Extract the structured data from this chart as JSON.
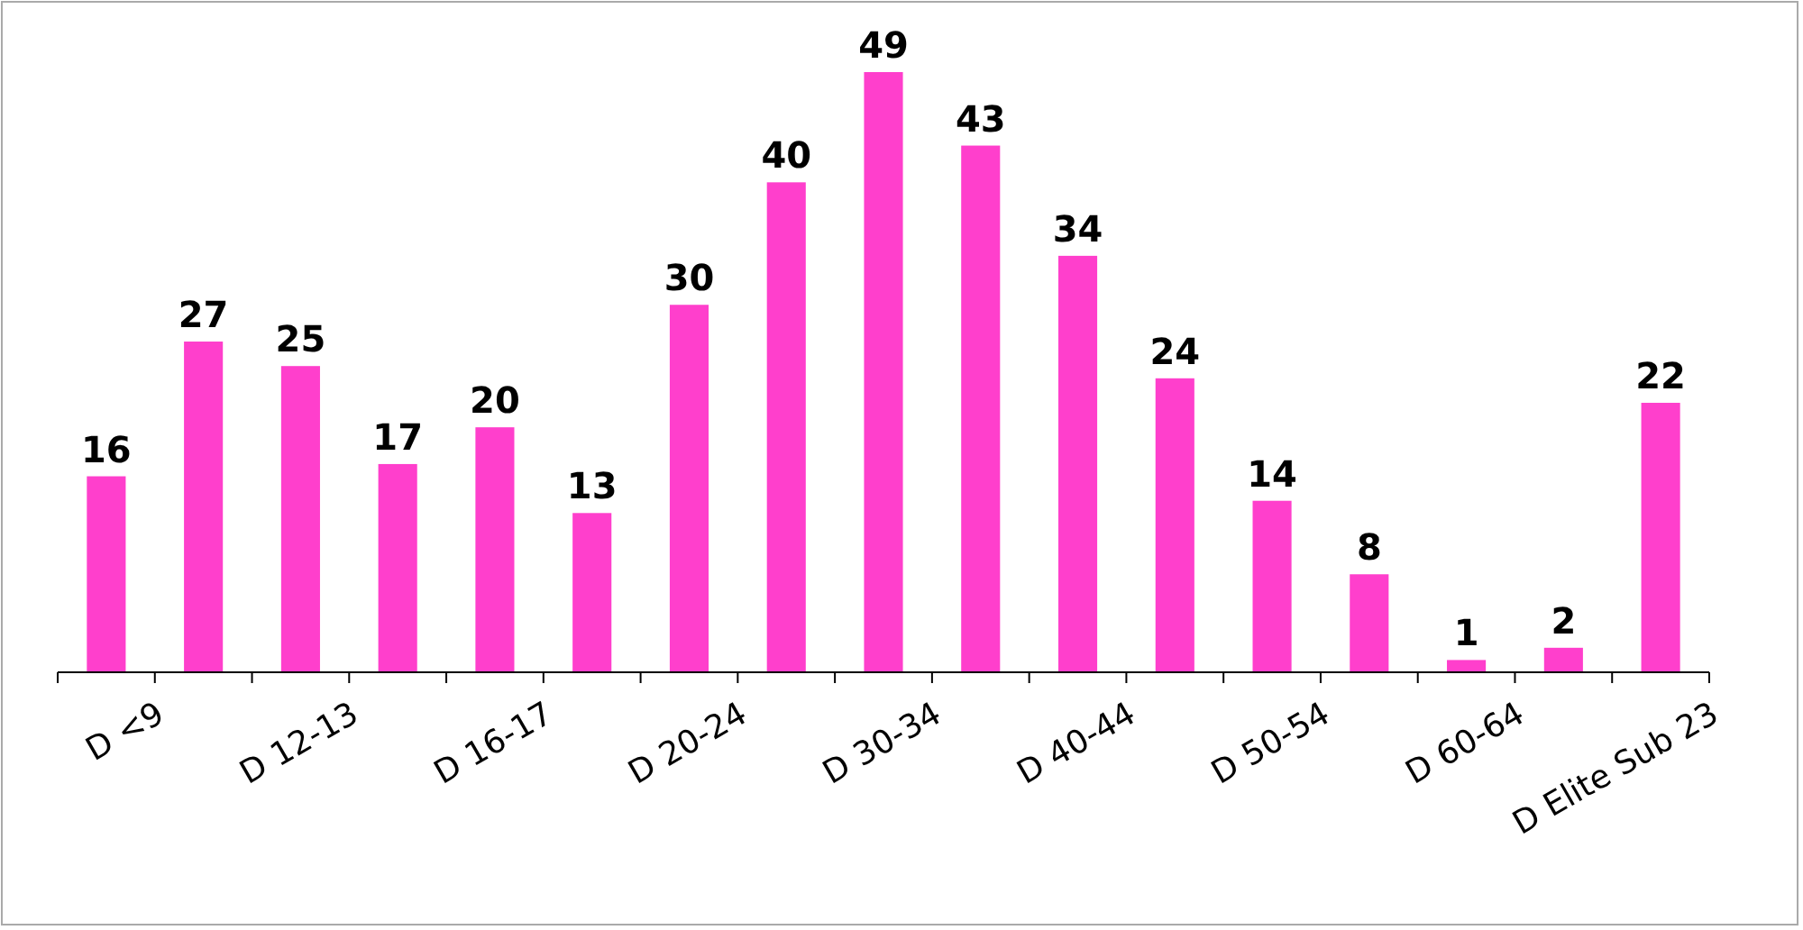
{
  "chart_data": {
    "type": "bar",
    "categories": [
      "D <9",
      null,
      "D 12-13",
      null,
      "D 16-17",
      null,
      "D 20-24",
      null,
      "D 30-34",
      null,
      "D 40-44",
      null,
      "D 50-54",
      null,
      "D 60-64",
      null,
      "D Elite Sub 23"
    ],
    "values": [
      16,
      27,
      25,
      17,
      20,
      13,
      30,
      40,
      49,
      43,
      34,
      24,
      14,
      8,
      1,
      2,
      22
    ],
    "color": "#ff3fcc",
    "data_labels": true
  }
}
